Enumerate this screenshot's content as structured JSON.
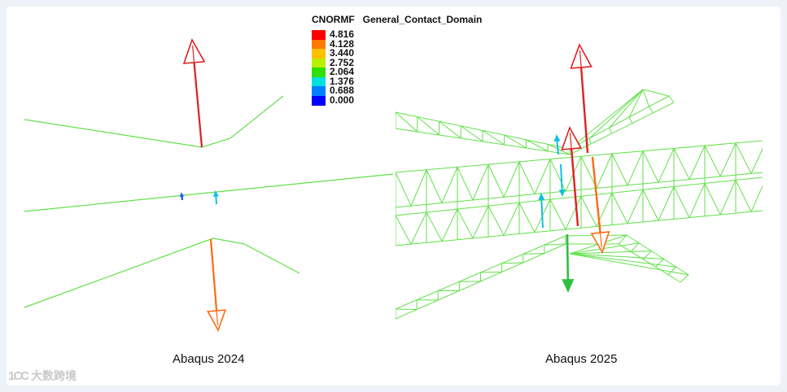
{
  "legend": {
    "title": "CNORMF   General_Contact_Domain",
    "colors": [
      "#ff0000",
      "#ff7a00",
      "#ffc000",
      "#b8f000",
      "#30e000",
      "#00e0e0",
      "#0080ff",
      "#0000ff"
    ],
    "values": [
      "4.816",
      "4.128",
      "3.440",
      "2.752",
      "2.064",
      "1.376",
      "0.688",
      "0.000"
    ]
  },
  "captions": {
    "left": "Abaqus 2024",
    "right": "Abaqus 2025"
  },
  "watermark": {
    "logo": "1CC",
    "text": "大数跨境"
  },
  "chart_data": {
    "type": "heatmap",
    "title": "CNORMF   General_Contact_Domain",
    "colorbar": {
      "min": 0.0,
      "max": 4.816,
      "levels": [
        4.816,
        4.128,
        3.44,
        2.752,
        2.064,
        1.376,
        0.688,
        0.0
      ],
      "colors": [
        "#ff0000",
        "#ff7a00",
        "#ffc000",
        "#b8f000",
        "#30e000",
        "#00e0e0",
        "#0080ff",
        "#0000ff"
      ]
    },
    "panels": [
      {
        "name": "Abaqus 2024",
        "mesh": "wire outline",
        "force_vectors": [
          {
            "direction": "up",
            "color": "#e02020"
          },
          {
            "direction": "down",
            "color": "#ff6a10"
          },
          {
            "direction": "up",
            "color": "#2060ff"
          },
          {
            "direction": "up",
            "color": "#10c0e0"
          }
        ]
      },
      {
        "name": "Abaqus 2025",
        "mesh": "hexahedral wireframe",
        "force_vectors": [
          {
            "direction": "up",
            "color": "#e02020"
          },
          {
            "direction": "up",
            "color": "#e02020"
          },
          {
            "direction": "down",
            "color": "#ff6a10"
          },
          {
            "direction": "down",
            "color": "#30c040"
          },
          {
            "direction": "up",
            "color": "#10c0e0"
          },
          {
            "direction": "down",
            "color": "#10c0e0"
          },
          {
            "direction": "up",
            "color": "#10c0e0"
          }
        ]
      }
    ]
  }
}
